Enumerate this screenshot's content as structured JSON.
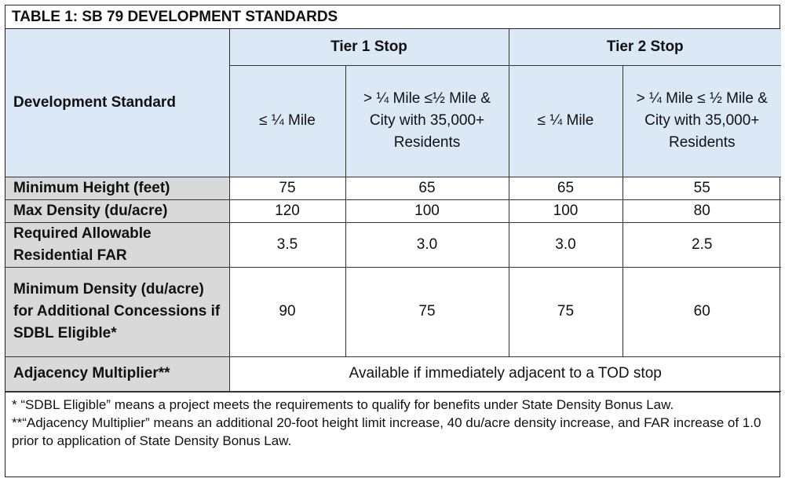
{
  "title": "TABLE 1:  SB 79 DEVELOPMENT STANDARDS",
  "header": {
    "standard_label": "Development Standard",
    "tier1_label": "Tier 1 Stop",
    "tier2_label": "Tier 2 Stop",
    "subheads": [
      "≤ ¼ Mile",
      "> ¼ Mile ≤½ Mile & City with 35,000+ Residents",
      "≤ ¼ Mile",
      "> ¼ Mile ≤ ½ Mile & City with 35,000+ Residents"
    ]
  },
  "rows": [
    {
      "label": "Minimum Height (feet)",
      "values": [
        "75",
        "65",
        "65",
        "55"
      ]
    },
    {
      "label": "Max Density (du/acre)",
      "values": [
        "120",
        "100",
        "100",
        "80"
      ]
    },
    {
      "label": "Required Allowable Residential FAR",
      "values": [
        "3.5",
        "3.0",
        "3.0",
        "2.5"
      ]
    },
    {
      "label": "Minimum Density (du/acre) for Additional Concessions if SDBL Eligible*",
      "values": [
        "90",
        "75",
        "75",
        "60"
      ]
    }
  ],
  "adjacency": {
    "label": "Adjacency Multiplier**",
    "text": "Available if immediately adjacent to a TOD stop"
  },
  "notes": [
    "* “SDBL Eligible” means a project meets the requirements to qualify for benefits under State Density Bonus Law.",
    "**“Adjacency Multiplier” means an additional 20-foot height limit increase, 40 du/acre density increase, and FAR increase of 1.0 prior to application of State Density Bonus Law."
  ]
}
